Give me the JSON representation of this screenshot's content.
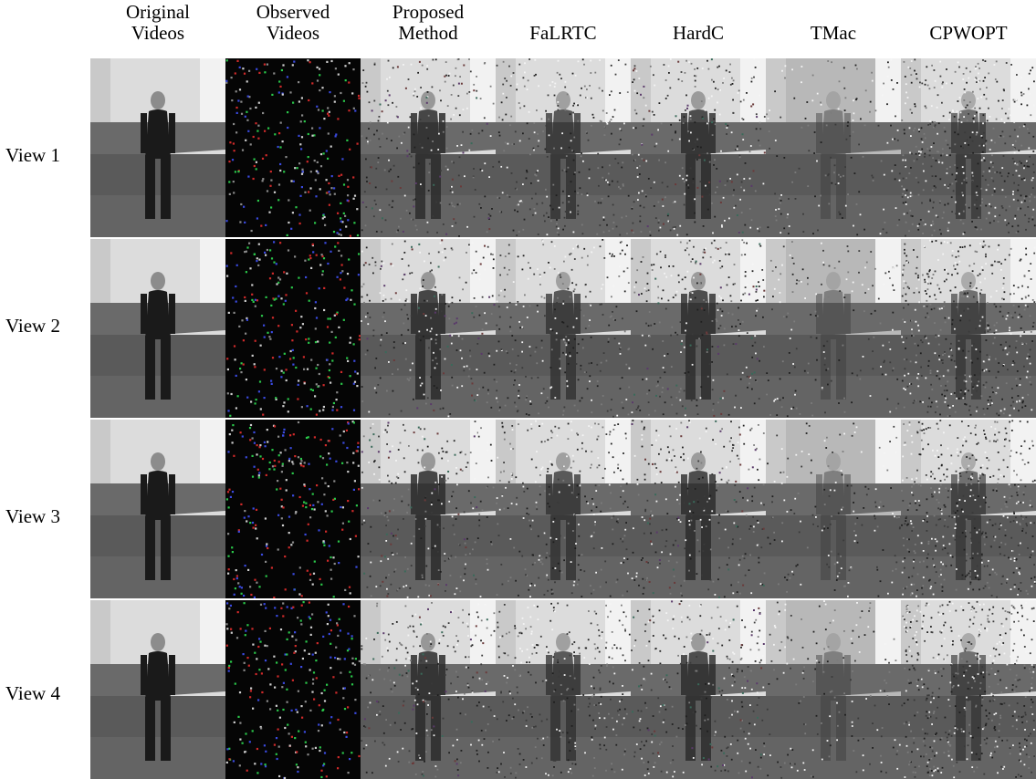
{
  "figure": {
    "columns": [
      {
        "id": "original",
        "label": "Original\nVideos"
      },
      {
        "id": "observed",
        "label": "Observed\nVideos"
      },
      {
        "id": "proposed",
        "label": "Proposed\nMethod"
      },
      {
        "id": "falrtc",
        "label": "FaLRTC"
      },
      {
        "id": "hardc",
        "label": "HardC"
      },
      {
        "id": "tmac",
        "label": "TMac"
      },
      {
        "id": "cpwopt",
        "label": "CPWOPT"
      }
    ],
    "rows": [
      {
        "id": "view1",
        "label": "View 1"
      },
      {
        "id": "view2",
        "label": "View 2"
      },
      {
        "id": "view3",
        "label": "View 3"
      },
      {
        "id": "view4",
        "label": "View 4"
      }
    ],
    "tile_content": {
      "original": "clean grayscale frame of a person standing in a room",
      "observed": "mostly black frame with sparse colored sampled pixels",
      "proposed": "recovered frame with moderate noise",
      "falrtc": "recovered frame with dotted noise",
      "hardc": "recovered frame with dotted noise",
      "tmac": "faint blurry recovered frame",
      "cpwopt": "heavily noisy recovered frame"
    },
    "colors": {
      "wall": "#dcdcdc",
      "floor": "#5a5a5a",
      "person": "#1a1a1a",
      "observed_bg": "#050505",
      "sample_red": "#d02a2a",
      "sample_green": "#2ac84a",
      "sample_blue": "#3a4ae0"
    }
  }
}
